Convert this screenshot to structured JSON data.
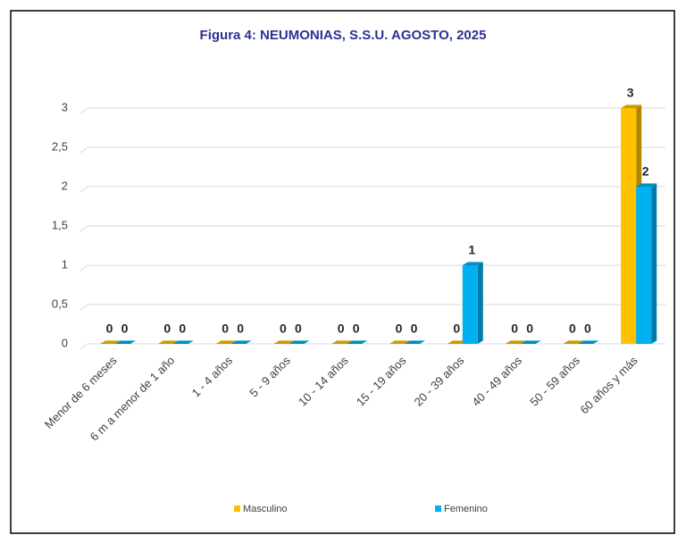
{
  "chart_data": {
    "type": "bar3d",
    "title": "Figura 4: NEUMONIAS, S.S.U. AGOSTO, 2025",
    "categories": [
      "Menor de 6 meses",
      "6 m a menor de 1 año",
      "1 - 4 años",
      "5 - 9 años",
      "10 - 14 años",
      "15 - 19 años",
      "20 - 39 años",
      "40 - 49 años",
      "50 - 59 años",
      "60 años y más"
    ],
    "series": [
      {
        "name": "Masculino",
        "color": "#ffc000",
        "values": [
          0,
          0,
          0,
          0,
          0,
          0,
          0,
          0,
          0,
          3
        ]
      },
      {
        "name": "Femenino",
        "color": "#00b0f0",
        "values": [
          0,
          0,
          0,
          0,
          0,
          0,
          1,
          0,
          0,
          2
        ]
      }
    ],
    "ylim": [
      0,
      3
    ],
    "yticks": [
      0,
      {
        "value": 0.5,
        "label": "0,5"
      },
      1,
      {
        "value": 1.5,
        "label": "1,5"
      },
      2,
      {
        "value": 2.5,
        "label": "2,5"
      },
      3
    ],
    "grid": true,
    "legend": "bottom"
  }
}
